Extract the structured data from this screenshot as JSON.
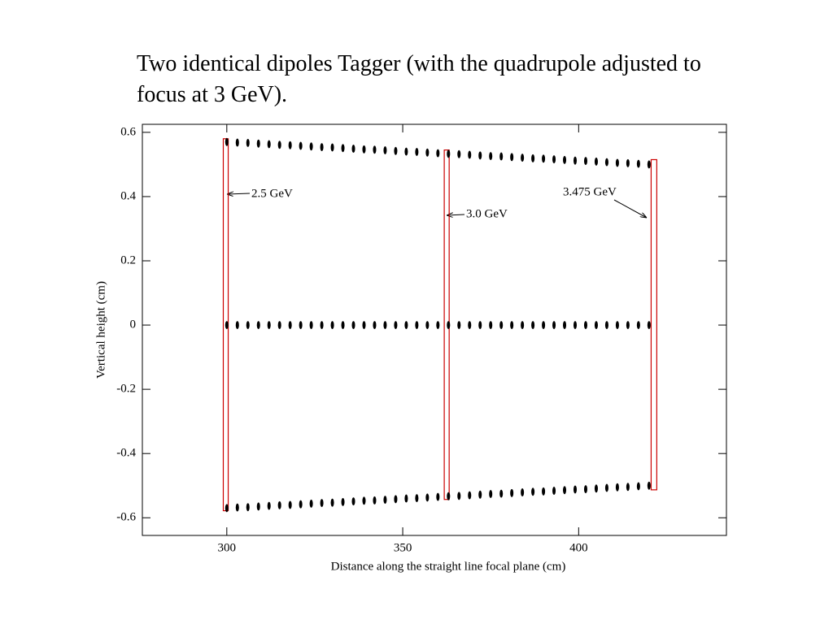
{
  "chart_data": {
    "type": "scatter",
    "title": "Two identical dipoles Tagger (with the quadrupole adjusted to focus at 3 GeV).",
    "xlabel": "Distance along the straight line focal plane  (cm)",
    "ylabel": "Vertical height (cm)",
    "xlim": [
      276,
      442
    ],
    "ylim": [
      -0.655,
      0.625
    ],
    "xticks": [
      300,
      350,
      400
    ],
    "yticks": [
      -0.6,
      -0.4,
      -0.2,
      0,
      0.2,
      0.4,
      0.6
    ],
    "x": [
      300,
      303,
      306,
      309,
      312,
      315,
      318,
      321,
      324,
      327,
      330,
      333,
      336,
      339,
      342,
      345,
      348,
      351,
      354,
      357,
      360,
      363,
      366,
      369,
      372,
      375,
      378,
      381,
      384,
      387,
      390,
      393,
      396,
      399,
      402,
      405,
      408,
      411,
      414,
      417,
      420
    ],
    "series": [
      {
        "color": "#000000",
        "values": [
          0.57,
          0.568,
          0.567,
          0.565,
          0.563,
          0.561,
          0.56,
          0.558,
          0.556,
          0.554,
          0.553,
          0.551,
          0.549,
          0.547,
          0.546,
          0.544,
          0.542,
          0.54,
          0.539,
          0.537,
          0.535,
          0.533,
          0.532,
          0.53,
          0.528,
          0.526,
          0.525,
          0.523,
          0.521,
          0.519,
          0.518,
          0.516,
          0.514,
          0.512,
          0.511,
          0.509,
          0.507,
          0.505,
          0.504,
          0.502,
          0.5
        ]
      },
      {
        "color": "#000000",
        "values": [
          0,
          0,
          0,
          0,
          0,
          0,
          0,
          0,
          0,
          0,
          0,
          0,
          0,
          0,
          0,
          0,
          0,
          0,
          0,
          0,
          0,
          0,
          0,
          0,
          0,
          0,
          0,
          0,
          0,
          0,
          0,
          0,
          0,
          0,
          0,
          0,
          0,
          0,
          0,
          0,
          0
        ]
      },
      {
        "color": "#000000",
        "values": [
          -0.57,
          -0.568,
          -0.567,
          -0.565,
          -0.563,
          -0.561,
          -0.56,
          -0.558,
          -0.556,
          -0.554,
          -0.553,
          -0.551,
          -0.549,
          -0.547,
          -0.546,
          -0.544,
          -0.542,
          -0.54,
          -0.539,
          -0.537,
          -0.535,
          -0.533,
          -0.532,
          -0.53,
          -0.528,
          -0.526,
          -0.525,
          -0.523,
          -0.521,
          -0.519,
          -0.518,
          -0.516,
          -0.514,
          -0.512,
          -0.511,
          -0.509,
          -0.507,
          -0.505,
          -0.504,
          -0.502,
          -0.5
        ]
      }
    ],
    "regions": [
      {
        "x": [
          299.0,
          300.4
        ],
        "y": [
          -0.578,
          0.58
        ],
        "color": "#cc0000"
      },
      {
        "x": [
          361.8,
          363.2
        ],
        "y": [
          -0.543,
          0.545
        ],
        "color": "#cc0000"
      },
      {
        "x": [
          420.6,
          422.2
        ],
        "y": [
          -0.513,
          0.515
        ],
        "color": "#cc0000"
      }
    ],
    "annotations": [
      "2.5 GeV",
      "3.0 GeV",
      "3.475 GeV"
    ]
  }
}
